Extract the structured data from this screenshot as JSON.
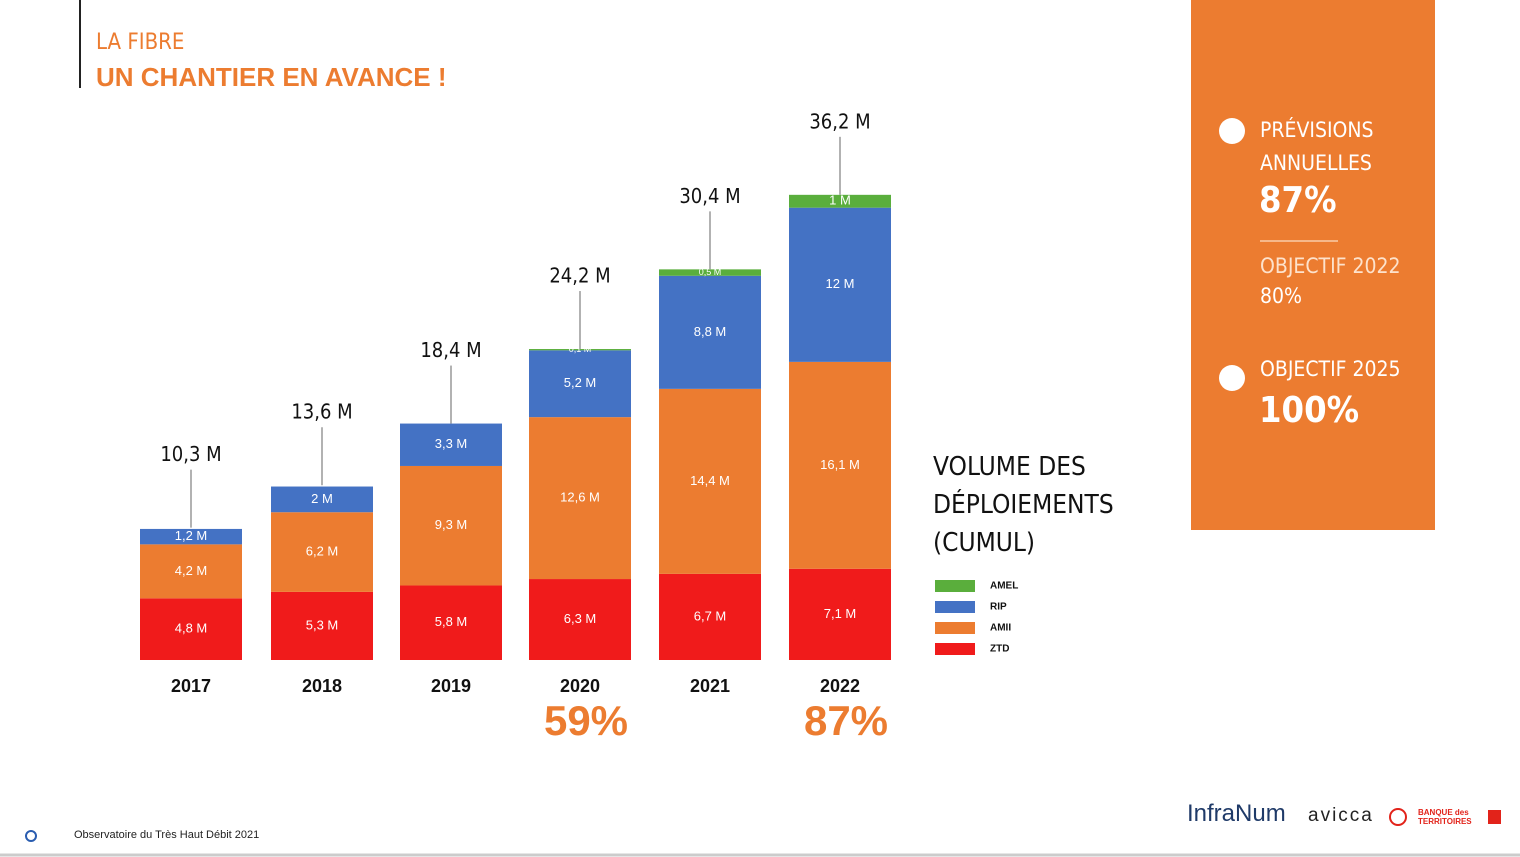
{
  "header": {
    "kicker": "LA FIBRE",
    "title": "UN CHANTIER EN AVANCE !"
  },
  "chart_data": {
    "type": "stacked_bar",
    "categories": [
      "2017",
      "2018",
      "2019",
      "2020",
      "2021",
      "2022"
    ],
    "series": [
      {
        "name": "ZTD",
        "color": "#f01b1b",
        "values": [
          4.8,
          5.3,
          5.8,
          6.3,
          6.7,
          7.1
        ],
        "value_labels": [
          "4,8 M",
          "5,3 M",
          "5,8 M",
          "6,3 M",
          "6,7 M",
          "7,1 M"
        ]
      },
      {
        "name": "AMII",
        "color": "#ec7c30",
        "values": [
          4.2,
          6.2,
          9.3,
          12.6,
          14.4,
          16.1
        ],
        "value_labels": [
          "4,2 M",
          "6,2 M",
          "9,3 M",
          "12,6 M",
          "14,4 M",
          "16,1 M"
        ]
      },
      {
        "name": "RIP",
        "color": "#4472c4",
        "values": [
          1.2,
          2,
          3.3,
          5.2,
          8.8,
          12
        ],
        "value_labels": [
          "1,2 M",
          "2 M",
          "3,3 M",
          "5,2 M",
          "8,8 M",
          "12 M"
        ]
      },
      {
        "name": "AMEL",
        "color": "#5aae3c",
        "values": [
          null,
          null,
          null,
          0.1,
          0.5,
          1
        ],
        "value_labels": [
          null,
          null,
          null,
          "0,1 M",
          "0,5 M",
          "1 M"
        ]
      }
    ],
    "totals": {
      "values": [
        10.3,
        13.6,
        18.4,
        24.2,
        30.4,
        36.2
      ],
      "value_labels": [
        "10,3 M",
        "13,6 M",
        "18,4 M",
        "24,2 M",
        "30,4 M",
        "36,2 M"
      ]
    },
    "rates": {
      "values": [
        null,
        null,
        null,
        59,
        null,
        87
      ],
      "value_labels": [
        null,
        null,
        null,
        "59%",
        null,
        "87%"
      ]
    },
    "legend_title": "VOLUME DES DÉPLOIEMENTS (CUMUL)"
  },
  "panel": {
    "item1": "PRÉVISIONS ANNUELLES",
    "item1_value": "87%",
    "target_2022": "OBJECTIF 2022",
    "target_2022_value": "80%",
    "item2": "OBJECTIF 2025",
    "item2_value": "100%"
  },
  "footer": {
    "source": "Observatoire du Très Haut Débit 2021",
    "logo1": "InfraNum",
    "logo2": "avicca",
    "logo3": "BANQUE des TERRITOIRES"
  }
}
